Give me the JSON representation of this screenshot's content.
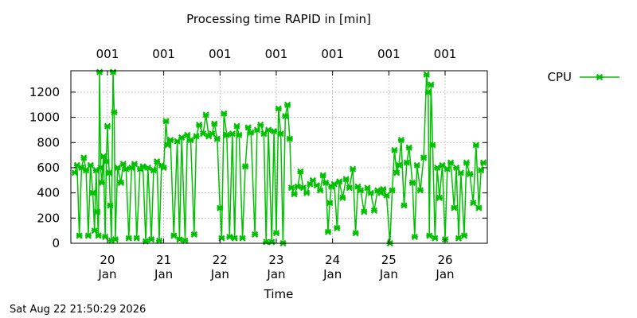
{
  "chart_data": {
    "type": "line",
    "title": "Processing time RAPID in [min]",
    "xlabel": "Time",
    "ylabel": "",
    "ylim": [
      0,
      1370
    ],
    "y_ticks": [
      0,
      200,
      400,
      600,
      800,
      1000,
      1200
    ],
    "xlim": [
      19.35,
      26.75
    ],
    "x_ticks": [
      {
        "value": 20,
        "day": "20",
        "month": "Jan"
      },
      {
        "value": 21,
        "day": "21",
        "month": "Jan"
      },
      {
        "value": 22,
        "day": "22",
        "month": "Jan"
      },
      {
        "value": 23,
        "day": "23",
        "month": "Jan"
      },
      {
        "value": 24,
        "day": "24",
        "month": "Jan"
      },
      {
        "value": 25,
        "day": "25",
        "month": "Jan"
      },
      {
        "value": 26,
        "day": "26",
        "month": "Jan"
      }
    ],
    "top_ticks": [
      {
        "value": 20,
        "label": "001"
      },
      {
        "value": 21,
        "label": "001"
      },
      {
        "value": 22,
        "label": "001"
      },
      {
        "value": 23,
        "label": "001"
      },
      {
        "value": 24,
        "label": "001"
      },
      {
        "value": 25,
        "label": "001"
      },
      {
        "value": 26,
        "label": "001"
      }
    ],
    "grid": true,
    "legend_position": "top-right",
    "series": [
      {
        "name": "CPU",
        "color": "#00c000",
        "marker": "cross",
        "points": [
          [
            19.42,
            560
          ],
          [
            19.46,
            620
          ],
          [
            19.5,
            60
          ],
          [
            19.54,
            600
          ],
          [
            19.58,
            680
          ],
          [
            19.62,
            580
          ],
          [
            19.66,
            60
          ],
          [
            19.7,
            620
          ],
          [
            19.74,
            400
          ],
          [
            19.77,
            100
          ],
          [
            19.8,
            580
          ],
          [
            19.82,
            250
          ],
          [
            19.84,
            60
          ],
          [
            19.86,
            1360
          ],
          [
            19.88,
            600
          ],
          [
            19.9,
            480
          ],
          [
            19.93,
            690
          ],
          [
            19.96,
            50
          ],
          [
            19.98,
            650
          ],
          [
            20.0,
            930
          ],
          [
            20.03,
            560
          ],
          [
            20.05,
            300
          ],
          [
            20.07,
            20
          ],
          [
            20.1,
            1360
          ],
          [
            20.12,
            1040
          ],
          [
            20.14,
            30
          ],
          [
            20.18,
            600
          ],
          [
            20.24,
            480
          ],
          [
            20.28,
            630
          ],
          [
            20.33,
            590
          ],
          [
            20.38,
            40
          ],
          [
            20.43,
            600
          ],
          [
            20.48,
            630
          ],
          [
            20.52,
            40
          ],
          [
            20.58,
            590
          ],
          [
            20.63,
            610
          ],
          [
            20.68,
            15
          ],
          [
            20.72,
            600
          ],
          [
            20.78,
            30
          ],
          [
            20.82,
            580
          ],
          [
            20.88,
            650
          ],
          [
            20.92,
            20
          ],
          [
            20.96,
            620
          ],
          [
            21.0,
            600
          ],
          [
            21.04,
            970
          ],
          [
            21.07,
            780
          ],
          [
            21.12,
            820
          ],
          [
            21.18,
            60
          ],
          [
            21.24,
            810
          ],
          [
            21.28,
            30
          ],
          [
            21.32,
            840
          ],
          [
            21.38,
            20
          ],
          [
            21.42,
            860
          ],
          [
            21.48,
            820
          ],
          [
            21.54,
            70
          ],
          [
            21.58,
            850
          ],
          [
            21.63,
            940
          ],
          [
            21.7,
            870
          ],
          [
            21.75,
            1020
          ],
          [
            21.8,
            850
          ],
          [
            21.86,
            870
          ],
          [
            21.9,
            950
          ],
          [
            21.95,
            830
          ],
          [
            22.0,
            280
          ],
          [
            22.03,
            40
          ],
          [
            22.07,
            1030
          ],
          [
            22.12,
            860
          ],
          [
            22.17,
            50
          ],
          [
            22.22,
            870
          ],
          [
            22.26,
            40
          ],
          [
            22.3,
            930
          ],
          [
            22.34,
            860
          ],
          [
            22.4,
            40
          ],
          [
            22.45,
            610
          ],
          [
            22.5,
            920
          ],
          [
            22.55,
            880
          ],
          [
            22.62,
            70
          ],
          [
            22.66,
            900
          ],
          [
            22.72,
            940
          ],
          [
            22.78,
            870
          ],
          [
            22.82,
            10
          ],
          [
            22.86,
            900
          ],
          [
            22.92,
            10
          ],
          [
            22.96,
            890
          ],
          [
            23.0,
            80
          ],
          [
            23.04,
            1070
          ],
          [
            23.08,
            870
          ],
          [
            23.12,
            0
          ],
          [
            23.16,
            1010
          ],
          [
            23.2,
            1100
          ],
          [
            23.24,
            830
          ],
          [
            23.27,
            440
          ],
          [
            23.32,
            390
          ],
          [
            23.38,
            450
          ],
          [
            23.43,
            570
          ],
          [
            23.48,
            440
          ],
          [
            23.54,
            400
          ],
          [
            23.6,
            470
          ],
          [
            23.65,
            500
          ],
          [
            23.72,
            460
          ],
          [
            23.78,
            420
          ],
          [
            23.83,
            540
          ],
          [
            23.88,
            480
          ],
          [
            23.92,
            90
          ],
          [
            23.95,
            320
          ],
          [
            23.98,
            450
          ],
          [
            24.03,
            470
          ],
          [
            24.08,
            120
          ],
          [
            24.12,
            490
          ],
          [
            24.18,
            360
          ],
          [
            24.24,
            510
          ],
          [
            24.3,
            440
          ],
          [
            24.36,
            590
          ],
          [
            24.41,
            80
          ],
          [
            24.45,
            450
          ],
          [
            24.5,
            420
          ],
          [
            24.56,
            250
          ],
          [
            24.62,
            440
          ],
          [
            24.68,
            400
          ],
          [
            24.74,
            260
          ],
          [
            24.8,
            420
          ],
          [
            24.86,
            400
          ],
          [
            24.9,
            430
          ],
          [
            24.96,
            380
          ],
          [
            25.02,
            0
          ],
          [
            25.06,
            420
          ],
          [
            25.1,
            740
          ],
          [
            25.14,
            560
          ],
          [
            25.18,
            620
          ],
          [
            25.22,
            820
          ],
          [
            25.27,
            300
          ],
          [
            25.32,
            640
          ],
          [
            25.36,
            760
          ],
          [
            25.42,
            480
          ],
          [
            25.46,
            50
          ],
          [
            25.5,
            620
          ],
          [
            25.56,
            420
          ],
          [
            25.62,
            680
          ],
          [
            25.67,
            1340
          ],
          [
            25.7,
            1200
          ],
          [
            25.72,
            60
          ],
          [
            25.75,
            1260
          ],
          [
            25.78,
            780
          ],
          [
            25.82,
            40
          ],
          [
            25.86,
            600
          ],
          [
            25.9,
            360
          ],
          [
            25.95,
            620
          ],
          [
            26.0,
            30
          ],
          [
            26.04,
            590
          ],
          [
            26.1,
            640
          ],
          [
            26.16,
            280
          ],
          [
            26.2,
            600
          ],
          [
            26.24,
            40
          ],
          [
            26.28,
            560
          ],
          [
            26.34,
            60
          ],
          [
            26.38,
            640
          ],
          [
            26.44,
            550
          ],
          [
            26.5,
            320
          ],
          [
            26.55,
            780
          ],
          [
            26.6,
            280
          ],
          [
            26.64,
            580
          ],
          [
            26.68,
            640
          ]
        ]
      }
    ]
  },
  "legend": {
    "label": "CPU"
  },
  "footer": {
    "timestamp": "Sat Aug 22 21:50:29 2026"
  }
}
